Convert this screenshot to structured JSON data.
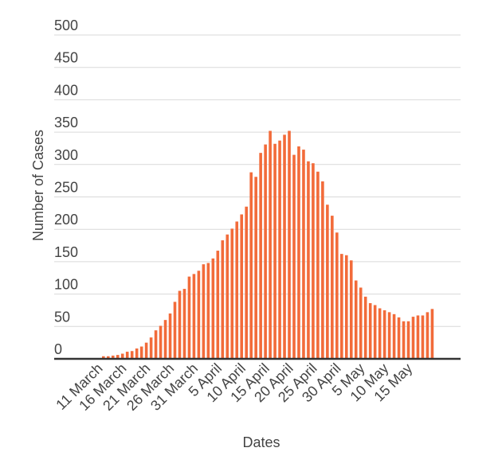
{
  "chart_data": {
    "type": "bar",
    "title": "",
    "xlabel": "Dates",
    "ylabel": "Number of Cases",
    "ylim": [
      0,
      500
    ],
    "yticks": [
      "0",
      "50",
      "100",
      "150",
      "200",
      "250",
      "300",
      "350",
      "400",
      "450",
      "500"
    ],
    "grid": true,
    "bar_color": "#f26b3a",
    "x_tick_labels": [
      "11 March",
      "16 March",
      "21 March",
      "26 March",
      "31 March",
      "5 April",
      "10 April",
      "15 April",
      "20 April",
      "25 April",
      "30 April",
      "5 May",
      "10 May",
      "15 May"
    ],
    "series": [
      {
        "values": [
          4,
          4,
          5,
          6,
          8,
          11,
          12,
          16,
          19,
          25,
          33,
          44,
          51,
          60,
          70,
          88,
          105,
          108,
          127,
          131,
          136,
          146,
          148,
          155,
          167,
          183,
          192,
          201,
          212,
          223,
          235,
          288,
          281,
          318,
          331,
          352,
          332,
          337,
          346,
          352,
          315,
          328,
          323,
          305,
          302,
          289,
          274,
          238,
          221,
          195,
          162,
          160,
          152,
          121,
          110,
          96,
          86,
          83,
          78,
          75,
          72,
          69,
          64,
          58,
          58,
          65,
          67,
          67,
          72,
          77
        ]
      }
    ]
  }
}
